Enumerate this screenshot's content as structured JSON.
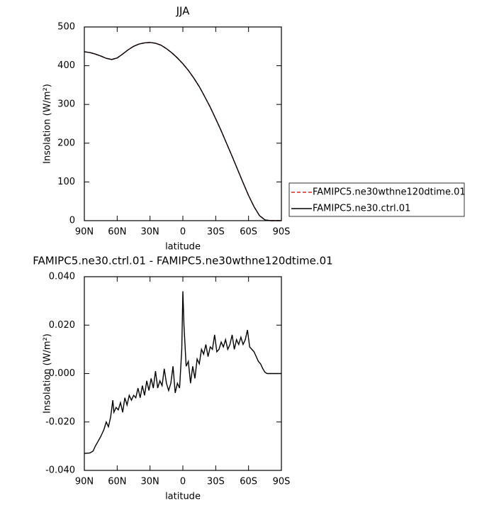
{
  "chart_data": [
    {
      "type": "line",
      "title": "JJA",
      "x_label": "latitude",
      "y_label": "Insolation (W/m²)",
      "x": [
        90,
        85,
        80,
        75,
        70,
        65,
        60,
        55,
        50,
        45,
        40,
        35,
        30,
        25,
        20,
        15,
        10,
        5,
        0,
        -5,
        -10,
        -15,
        -20,
        -25,
        -30,
        -35,
        -40,
        -45,
        -50,
        -55,
        -60,
        -65,
        -70,
        -75,
        -80,
        -85,
        -90
      ],
      "series": [
        {
          "name": "FAMIPC5.ne30wthne120dtime.01",
          "color": "#e0201b",
          "dash": true,
          "values": [
            436,
            434,
            430,
            425,
            419,
            416,
            420,
            430,
            441,
            450,
            456,
            459,
            460,
            458,
            453,
            444,
            433,
            420,
            405,
            388,
            368,
            346,
            320,
            293,
            263,
            232,
            199,
            166,
            132,
            98,
            65,
            36,
            13,
            2,
            0,
            0,
            0
          ]
        },
        {
          "name": "FAMIPC5.ne30.ctrl.01",
          "color": "#000000",
          "dash": false,
          "values": [
            436,
            434,
            430,
            425,
            419,
            416,
            420,
            430,
            441,
            450,
            456,
            459,
            460,
            458,
            453,
            444,
            433,
            420,
            405,
            388,
            368,
            346,
            320,
            293,
            263,
            232,
            199,
            166,
            132,
            98,
            65,
            36,
            13,
            2,
            0,
            0,
            0
          ]
        }
      ],
      "xlim": [
        90,
        -90
      ],
      "xticks": [
        {
          "value": 90,
          "label": "90N"
        },
        {
          "value": 60,
          "label": "60N"
        },
        {
          "value": 30,
          "label": "30N"
        },
        0,
        {
          "value": -30,
          "label": "30S"
        },
        {
          "value": -60,
          "label": "60S"
        },
        {
          "value": -90,
          "label": "90S"
        }
      ],
      "ylim": [
        0,
        500
      ],
      "yticks": [
        0,
        100,
        200,
        300,
        400,
        500
      ],
      "legend": "right"
    },
    {
      "type": "line",
      "title": "FAMIPC5.ne30.ctrl.01 - FAMIPC5.ne30wthne120dtime.01",
      "x_label": "latitude",
      "y_label": "Insolation (W/m²)",
      "x": [
        90,
        85,
        82,
        80,
        75,
        72,
        70,
        68,
        66,
        64,
        63,
        61,
        59,
        57,
        55,
        53,
        51,
        49,
        47,
        45,
        43,
        41,
        39,
        37,
        35,
        33,
        31,
        29,
        27,
        25,
        23,
        21,
        19,
        17,
        15,
        13,
        11,
        9,
        7,
        5,
        3,
        1,
        0,
        -1,
        -3,
        -5,
        -7,
        -9,
        -11,
        -13,
        -15,
        -17,
        -19,
        -21,
        -23,
        -25,
        -27,
        -29,
        -31,
        -33,
        -35,
        -37,
        -39,
        -41,
        -43,
        -45,
        -47,
        -49,
        -51,
        -53,
        -55,
        -57,
        -59,
        -61,
        -63,
        -65,
        -67,
        -69,
        -71,
        -73,
        -75,
        -77,
        -80,
        -85,
        -90
      ],
      "series": [
        {
          "name": "FAMIPC5.ne30.ctrl.01 - FAMIPC5.ne30wthne120dtime.01",
          "color": "#000000",
          "dash": false,
          "values": [
            -0.033,
            -0.0328,
            -0.032,
            -0.03,
            -0.026,
            -0.023,
            -0.02,
            -0.022,
            -0.018,
            -0.011,
            -0.016,
            -0.014,
            -0.015,
            -0.012,
            -0.016,
            -0.01,
            -0.013,
            -0.009,
            -0.011,
            -0.009,
            -0.01,
            -0.006,
            -0.01,
            -0.005,
            -0.009,
            -0.003,
            -0.007,
            -0.002,
            -0.006,
            0.001,
            -0.006,
            -0.003,
            -0.005,
            0.002,
            -0.004,
            -0.007,
            -0.004,
            0.003,
            -0.008,
            -0.004,
            -0.006,
            0.01,
            0.034,
            0.02,
            0.003,
            0.005,
            -0.004,
            0.003,
            -0.002,
            0.006,
            0.004,
            0.01,
            0.008,
            0.012,
            0.007,
            0.011,
            0.01,
            0.016,
            0.009,
            0.01,
            0.013,
            0.011,
            0.014,
            0.01,
            0.012,
            0.016,
            0.01,
            0.014,
            0.012,
            0.015,
            0.012,
            0.014,
            0.018,
            0.011,
            0.01,
            0.009,
            0.007,
            0.005,
            0.004,
            0.002,
            0.0005,
            0,
            0,
            0,
            0
          ]
        }
      ],
      "xlim": [
        90,
        -90
      ],
      "xticks": [
        {
          "value": 90,
          "label": "90N"
        },
        {
          "value": 60,
          "label": "60N"
        },
        {
          "value": 30,
          "label": "30N"
        },
        0,
        {
          "value": -30,
          "label": "30S"
        },
        {
          "value": -60,
          "label": "60S"
        },
        {
          "value": -90,
          "label": "90S"
        }
      ],
      "ylim": [
        -0.04,
        0.04
      ],
      "yticks": [
        {
          "value": -0.04,
          "label": "-0.040"
        },
        {
          "value": -0.02,
          "label": "-0.020"
        },
        {
          "value": 0,
          "label": "0.000"
        },
        {
          "value": 0.02,
          "label": "0.020"
        },
        {
          "value": 0.04,
          "label": "0.040"
        }
      ]
    }
  ]
}
